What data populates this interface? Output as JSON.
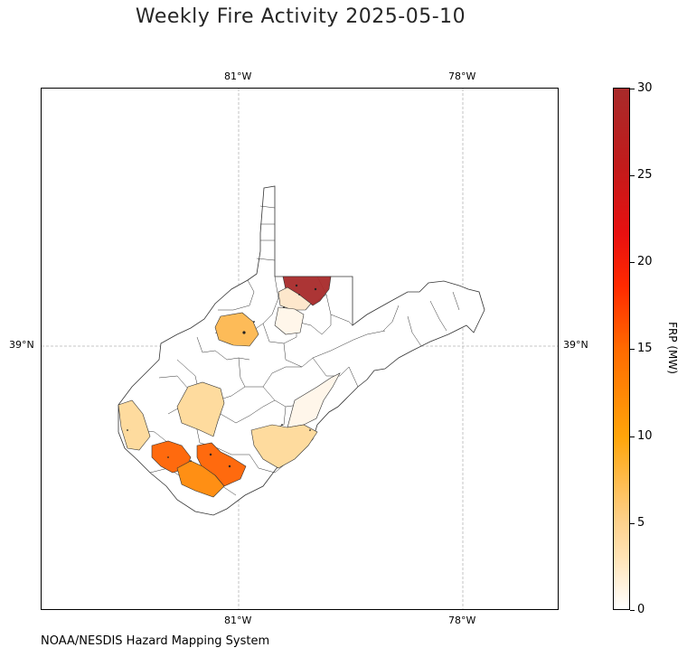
{
  "title": "Weekly Fire Activity 2025-05-10",
  "footer": "NOAA/NESDIS Hazard Mapping System",
  "gridlines": {
    "top_lon": [
      "81°W",
      "78°W"
    ],
    "bottom_lon": [
      "81°W",
      "78°W"
    ],
    "left_lat": "39°N",
    "right_lat": "39°N"
  },
  "colorbar": {
    "label": "FRP (MW)",
    "ticks": [
      "0",
      "5",
      "10",
      "15",
      "20",
      "25",
      "30"
    ],
    "range": [
      0,
      30
    ]
  },
  "colors": {
    "frp_30": "#a82a2a",
    "frp_13": "#ff6a0e",
    "frp_11": "#ff8f14",
    "frp_7": "#fdbb58",
    "frp_4": "#fedb9e",
    "frp_2": "#fde7cc",
    "frp_1": "#fff6ea",
    "no_fire": "#ffffff"
  }
}
